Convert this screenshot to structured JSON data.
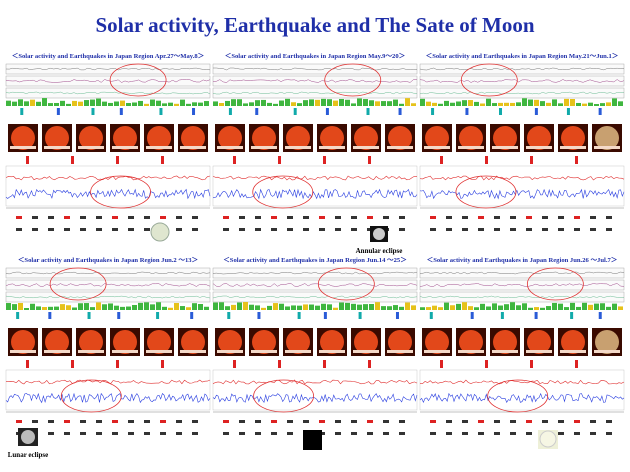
{
  "header": {
    "title": "Solar activity, Earthquake and The Sate of Moon"
  },
  "panels": [
    {
      "heading": "＜Solar activity and Earthquakes in Japan Region Apr.27～May.8＞"
    },
    {
      "heading": "＜Solar activity and Earthquakes in Japan Region May.9～20＞"
    },
    {
      "heading": "＜Solar activity and Earthquakes in Japan Region May.21～Jun.1＞"
    },
    {
      "heading": "＜Solar activity and Earthquakes in Japan Region Jun.2 ～13＞"
    },
    {
      "heading": "＜Solar activity and Earthquakes in Japan Region Jun.14 ～25＞"
    },
    {
      "heading": "＜Solar activity and Earthquakes in Japan Region Jun.26 ～Jul.7＞"
    }
  ],
  "captions": {
    "annular": "Annular eclipse",
    "lunar": "Lunar eclipse"
  }
}
